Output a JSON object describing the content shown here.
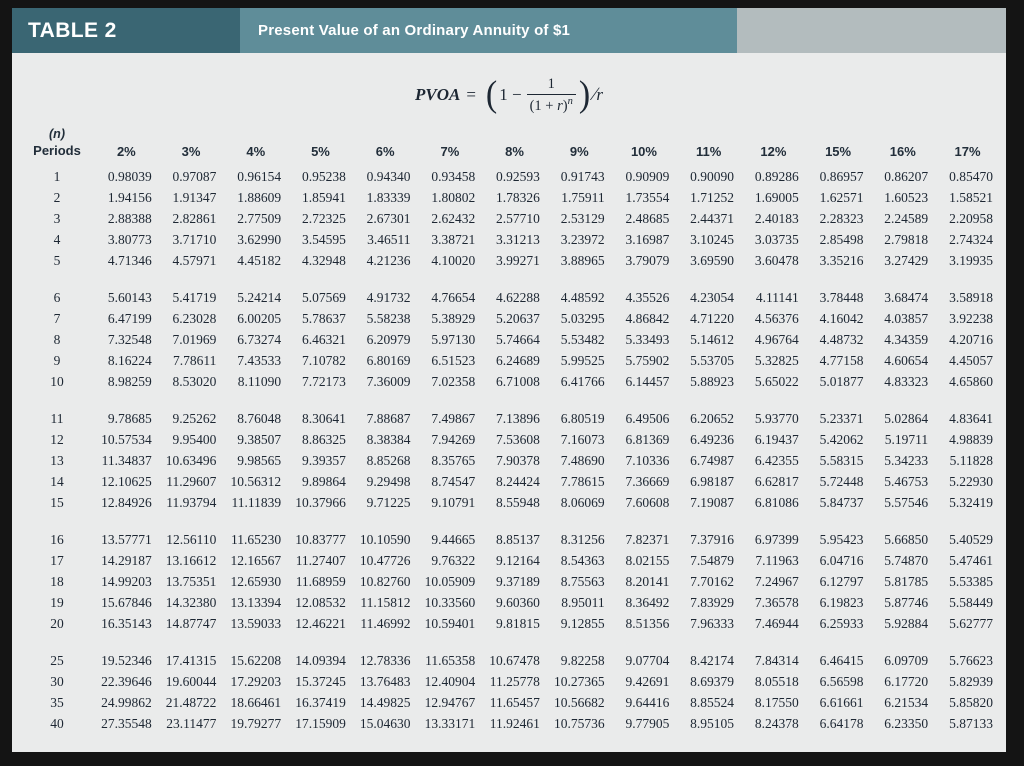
{
  "header": {
    "table_label": "TABLE 2",
    "title": "Present Value of an Ordinary Annuity of $1"
  },
  "formula": {
    "lhs_var": "PVOA",
    "equals": "=",
    "open_paren": "(",
    "minuend": "1 −",
    "numerator": "1",
    "den_prefix": "(1 + ",
    "den_var": "r",
    "den_suffix": ")",
    "exponent": "n",
    "close_paren": ")",
    "slash": "∕",
    "divisor_var": "r"
  },
  "table": {
    "corner_top": "(n)",
    "corner_bottom": "Periods",
    "columns": [
      "2%",
      "3%",
      "4%",
      "5%",
      "6%",
      "7%",
      "8%",
      "9%",
      "10%",
      "11%",
      "12%",
      "15%",
      "16%",
      "17%"
    ],
    "groups": [
      {
        "rows": [
          {
            "n": "1",
            "v": [
              "0.98039",
              "0.97087",
              "0.96154",
              "0.95238",
              "0.94340",
              "0.93458",
              "0.92593",
              "0.91743",
              "0.90909",
              "0.90090",
              "0.89286",
              "0.86957",
              "0.86207",
              "0.85470"
            ]
          },
          {
            "n": "2",
            "v": [
              "1.94156",
              "1.91347",
              "1.88609",
              "1.85941",
              "1.83339",
              "1.80802",
              "1.78326",
              "1.75911",
              "1.73554",
              "1.71252",
              "1.69005",
              "1.62571",
              "1.60523",
              "1.58521"
            ]
          },
          {
            "n": "3",
            "v": [
              "2.88388",
              "2.82861",
              "2.77509",
              "2.72325",
              "2.67301",
              "2.62432",
              "2.57710",
              "2.53129",
              "2.48685",
              "2.44371",
              "2.40183",
              "2.28323",
              "2.24589",
              "2.20958"
            ]
          },
          {
            "n": "4",
            "v": [
              "3.80773",
              "3.71710",
              "3.62990",
              "3.54595",
              "3.46511",
              "3.38721",
              "3.31213",
              "3.23972",
              "3.16987",
              "3.10245",
              "3.03735",
              "2.85498",
              "2.79818",
              "2.74324"
            ]
          },
          {
            "n": "5",
            "v": [
              "4.71346",
              "4.57971",
              "4.45182",
              "4.32948",
              "4.21236",
              "4.10020",
              "3.99271",
              "3.88965",
              "3.79079",
              "3.69590",
              "3.60478",
              "3.35216",
              "3.27429",
              "3.19935"
            ]
          }
        ]
      },
      {
        "rows": [
          {
            "n": "6",
            "v": [
              "5.60143",
              "5.41719",
              "5.24214",
              "5.07569",
              "4.91732",
              "4.76654",
              "4.62288",
              "4.48592",
              "4.35526",
              "4.23054",
              "4.11141",
              "3.78448",
              "3.68474",
              "3.58918"
            ]
          },
          {
            "n": "7",
            "v": [
              "6.47199",
              "6.23028",
              "6.00205",
              "5.78637",
              "5.58238",
              "5.38929",
              "5.20637",
              "5.03295",
              "4.86842",
              "4.71220",
              "4.56376",
              "4.16042",
              "4.03857",
              "3.92238"
            ]
          },
          {
            "n": "8",
            "v": [
              "7.32548",
              "7.01969",
              "6.73274",
              "6.46321",
              "6.20979",
              "5.97130",
              "5.74664",
              "5.53482",
              "5.33493",
              "5.14612",
              "4.96764",
              "4.48732",
              "4.34359",
              "4.20716"
            ]
          },
          {
            "n": "9",
            "v": [
              "8.16224",
              "7.78611",
              "7.43533",
              "7.10782",
              "6.80169",
              "6.51523",
              "6.24689",
              "5.99525",
              "5.75902",
              "5.53705",
              "5.32825",
              "4.77158",
              "4.60654",
              "4.45057"
            ]
          },
          {
            "n": "10",
            "v": [
              "8.98259",
              "8.53020",
              "8.11090",
              "7.72173",
              "7.36009",
              "7.02358",
              "6.71008",
              "6.41766",
              "6.14457",
              "5.88923",
              "5.65022",
              "5.01877",
              "4.83323",
              "4.65860"
            ]
          }
        ]
      },
      {
        "rows": [
          {
            "n": "11",
            "v": [
              "9.78685",
              "9.25262",
              "8.76048",
              "8.30641",
              "7.88687",
              "7.49867",
              "7.13896",
              "6.80519",
              "6.49506",
              "6.20652",
              "5.93770",
              "5.23371",
              "5.02864",
              "4.83641"
            ]
          },
          {
            "n": "12",
            "v": [
              "10.57534",
              "9.95400",
              "9.38507",
              "8.86325",
              "8.38384",
              "7.94269",
              "7.53608",
              "7.16073",
              "6.81369",
              "6.49236",
              "6.19437",
              "5.42062",
              "5.19711",
              "4.98839"
            ]
          },
          {
            "n": "13",
            "v": [
              "11.34837",
              "10.63496",
              "9.98565",
              "9.39357",
              "8.85268",
              "8.35765",
              "7.90378",
              "7.48690",
              "7.10336",
              "6.74987",
              "6.42355",
              "5.58315",
              "5.34233",
              "5.11828"
            ]
          },
          {
            "n": "14",
            "v": [
              "12.10625",
              "11.29607",
              "10.56312",
              "9.89864",
              "9.29498",
              "8.74547",
              "8.24424",
              "7.78615",
              "7.36669",
              "6.98187",
              "6.62817",
              "5.72448",
              "5.46753",
              "5.22930"
            ]
          },
          {
            "n": "15",
            "v": [
              "12.84926",
              "11.93794",
              "11.11839",
              "10.37966",
              "9.71225",
              "9.10791",
              "8.55948",
              "8.06069",
              "7.60608",
              "7.19087",
              "6.81086",
              "5.84737",
              "5.57546",
              "5.32419"
            ]
          }
        ]
      },
      {
        "rows": [
          {
            "n": "16",
            "v": [
              "13.57771",
              "12.56110",
              "11.65230",
              "10.83777",
              "10.10590",
              "9.44665",
              "8.85137",
              "8.31256",
              "7.82371",
              "7.37916",
              "6.97399",
              "5.95423",
              "5.66850",
              "5.40529"
            ]
          },
          {
            "n": "17",
            "v": [
              "14.29187",
              "13.16612",
              "12.16567",
              "11.27407",
              "10.47726",
              "9.76322",
              "9.12164",
              "8.54363",
              "8.02155",
              "7.54879",
              "7.11963",
              "6.04716",
              "5.74870",
              "5.47461"
            ]
          },
          {
            "n": "18",
            "v": [
              "14.99203",
              "13.75351",
              "12.65930",
              "11.68959",
              "10.82760",
              "10.05909",
              "9.37189",
              "8.75563",
              "8.20141",
              "7.70162",
              "7.24967",
              "6.12797",
              "5.81785",
              "5.53385"
            ]
          },
          {
            "n": "19",
            "v": [
              "15.67846",
              "14.32380",
              "13.13394",
              "12.08532",
              "11.15812",
              "10.33560",
              "9.60360",
              "8.95011",
              "8.36492",
              "7.83929",
              "7.36578",
              "6.19823",
              "5.87746",
              "5.58449"
            ]
          },
          {
            "n": "20",
            "v": [
              "16.35143",
              "14.87747",
              "13.59033",
              "12.46221",
              "11.46992",
              "10.59401",
              "9.81815",
              "9.12855",
              "8.51356",
              "7.96333",
              "7.46944",
              "6.25933",
              "5.92884",
              "5.62777"
            ]
          }
        ]
      },
      {
        "rows": [
          {
            "n": "25",
            "v": [
              "19.52346",
              "17.41315",
              "15.62208",
              "14.09394",
              "12.78336",
              "11.65358",
              "10.67478",
              "9.82258",
              "9.07704",
              "8.42174",
              "7.84314",
              "6.46415",
              "6.09709",
              "5.76623"
            ]
          },
          {
            "n": "30",
            "v": [
              "22.39646",
              "19.60044",
              "17.29203",
              "15.37245",
              "13.76483",
              "12.40904",
              "11.25778",
              "10.27365",
              "9.42691",
              "8.69379",
              "8.05518",
              "6.56598",
              "6.17720",
              "5.82939"
            ]
          },
          {
            "n": "35",
            "v": [
              "24.99862",
              "21.48722",
              "18.66461",
              "16.37419",
              "14.49825",
              "12.94767",
              "11.65457",
              "10.56682",
              "9.64416",
              "8.85524",
              "8.17550",
              "6.61661",
              "6.21534",
              "5.85820"
            ]
          },
          {
            "n": "40",
            "v": [
              "27.35548",
              "23.11477",
              "19.79277",
              "17.15909",
              "15.04630",
              "13.33171",
              "11.92461",
              "10.75736",
              "9.77905",
              "8.95105",
              "8.24378",
              "6.64178",
              "6.23350",
              "5.87133"
            ]
          }
        ]
      }
    ]
  },
  "colors": {
    "header_left_bg": "#3a6673",
    "header_mid_bg": "#5f8d99",
    "header_right_bg": "#b3bcbe",
    "panel_bg": "#eaebeb",
    "text": "#1d2733",
    "frame": "#141414"
  }
}
